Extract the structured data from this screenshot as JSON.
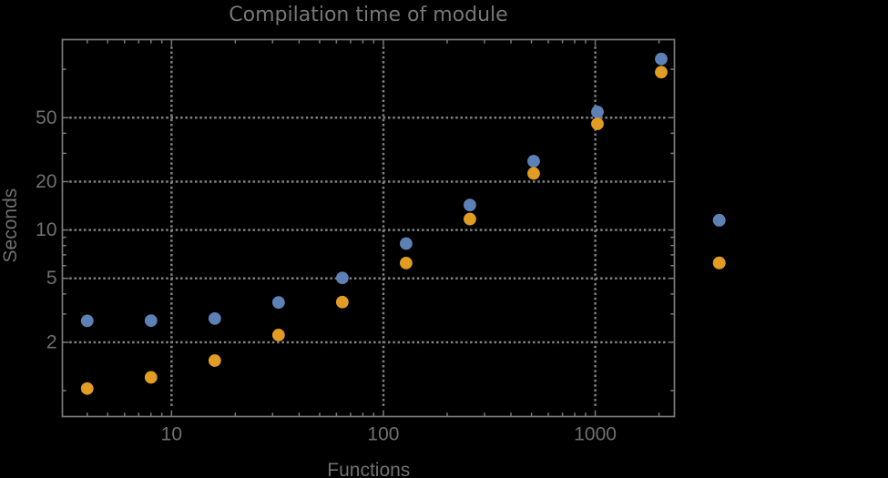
{
  "title": "Compilation time of module",
  "chart_data": {
    "type": "scatter",
    "title": "Compilation time of module",
    "xlabel": "Functions",
    "ylabel": "Seconds",
    "x_scale": "log",
    "y_scale": "log",
    "xlim": [
      3.054,
      2364
    ],
    "ylim": [
      0.69,
      153.1
    ],
    "grid": "dotted",
    "legend_position": "right",
    "x": [
      4,
      8,
      16,
      32,
      64,
      128,
      256,
      512,
      1024,
      2048
    ],
    "series": [
      {
        "name": "series-blue",
        "color": "#5e81b5",
        "values": [
          2.72,
          2.73,
          2.81,
          3.54,
          5.03,
          8.23,
          14.3,
          26.8,
          54.3,
          116
        ]
      },
      {
        "name": "series-orange",
        "color": "#e19c24",
        "values": [
          1.03,
          1.21,
          1.54,
          2.22,
          3.56,
          6.23,
          11.7,
          22.5,
          45.8,
          96.0
        ]
      }
    ],
    "x_major_ticks": [
      10,
      100,
      1000
    ],
    "x_tick_labels": [
      "10",
      "100",
      "1000"
    ],
    "x_minor_ticks": [
      4,
      5,
      6,
      7,
      8,
      9,
      20,
      30,
      40,
      50,
      60,
      70,
      80,
      90,
      200,
      300,
      400,
      500,
      600,
      700,
      800,
      900,
      2000
    ],
    "y_major_ticks": [
      2,
      5,
      10,
      20,
      50
    ],
    "y_tick_labels": [
      "2",
      "5",
      "10",
      "20",
      "50"
    ],
    "y_minor_ticks": [
      1,
      3,
      4,
      6,
      7,
      8,
      9,
      30,
      40,
      100
    ]
  },
  "colors": {
    "background": "#000000",
    "frame": "#7a7a7a",
    "grid": "#828282",
    "tick_label": "#707070",
    "axis_label": "#707070",
    "title": "#777777",
    "series_blue": "#5e81b5",
    "series_orange": "#e19c24"
  }
}
